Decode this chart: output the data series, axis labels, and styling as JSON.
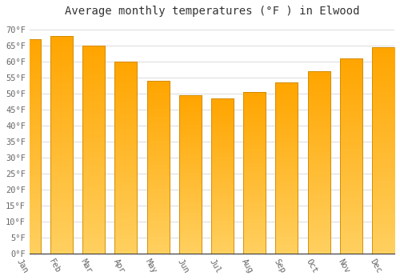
{
  "title": "Average monthly temperatures (°F ) in Elwood",
  "months": [
    "Jan",
    "Feb",
    "Mar",
    "Apr",
    "May",
    "Jun",
    "Jul",
    "Aug",
    "Sep",
    "Oct",
    "Nov",
    "Dec"
  ],
  "values": [
    67,
    68,
    65,
    60,
    54,
    49.5,
    48.5,
    50.5,
    53.5,
    57,
    61,
    64.5
  ],
  "bar_color_top": "#FFA500",
  "bar_color_bottom": "#FFD060",
  "bar_edge_color": "#CC8800",
  "yticks": [
    0,
    5,
    10,
    15,
    20,
    25,
    30,
    35,
    40,
    45,
    50,
    55,
    60,
    65,
    70
  ],
  "ytick_labels": [
    "0°F",
    "5°F",
    "10°F",
    "15°F",
    "20°F",
    "25°F",
    "30°F",
    "35°F",
    "40°F",
    "45°F",
    "50°F",
    "55°F",
    "60°F",
    "65°F",
    "70°F"
  ],
  "ylim": [
    0,
    72
  ],
  "background_color": "#ffffff",
  "plot_bg_color": "#ffffff",
  "grid_color": "#dddddd",
  "title_fontsize": 10,
  "tick_fontsize": 7.5,
  "bar_width": 0.7,
  "xlabel_rotation": -60
}
